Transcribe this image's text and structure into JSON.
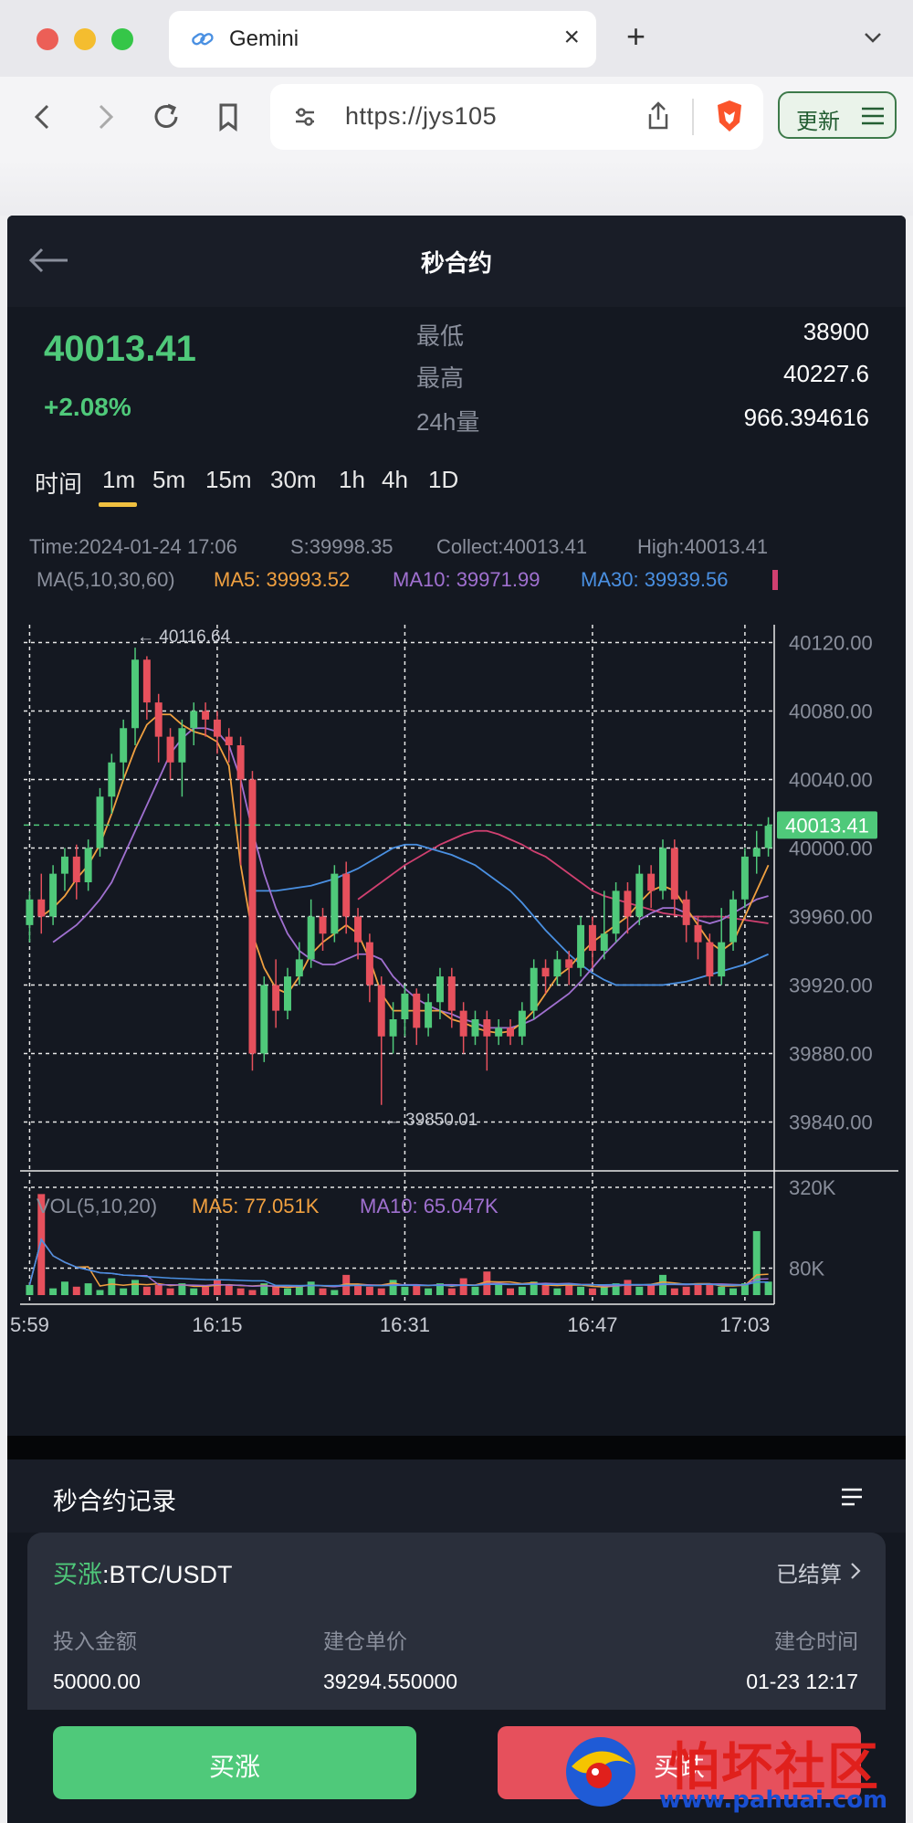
{
  "browser": {
    "tab_title": "Gemini",
    "url": "https://jys105",
    "update_label": "更新"
  },
  "app": {
    "title": "秒合约",
    "price": "40013.41",
    "change": "+2.08%",
    "stats": [
      {
        "label": "最低",
        "value": "38900"
      },
      {
        "label": "最高",
        "value": "40227.6"
      },
      {
        "label": "24h量",
        "value": "966.394616"
      }
    ],
    "timeframes": [
      "时间",
      "1m",
      "5m",
      "15m",
      "30m",
      "1h",
      "4h",
      "1D"
    ],
    "active_timeframe": "1m"
  },
  "chart_data": {
    "type": "candlestick",
    "info": {
      "time": "Time:2024-01-24 17:06",
      "s": "S:39998.35",
      "collect": "Collect:40013.41",
      "high": "High:40013.41"
    },
    "ma_legend": {
      "label": "MA(5,10,30,60)",
      "ma5": "MA5: 39993.52",
      "ma10": "MA10: 39971.99",
      "ma30": "MA30: 39939.56"
    },
    "vol_legend": {
      "label": "VOL(5,10,20)",
      "ma5": "MA5: 77.051K",
      "ma10": "MA10: 65.047K"
    },
    "y_ticks": [
      "40120.00",
      "40080.00",
      "40040.00",
      "40000.00",
      "39960.00",
      "39920.00",
      "39880.00",
      "39840.00"
    ],
    "y_tick_values": [
      40120,
      40080,
      40040,
      40000,
      39960,
      39920,
      39880,
      39840
    ],
    "ylim": [
      39820,
      40140
    ],
    "vol_ticks": [
      "320K",
      "80K"
    ],
    "x_ticks": [
      "5:59",
      "16:15",
      "16:31",
      "16:47",
      "17:03"
    ],
    "last_price_label": "40013.41",
    "max_label": "40116.64",
    "min_label": "39850.01",
    "candles": [
      [
        39955,
        39970,
        39945,
        39975
      ],
      [
        39970,
        39960,
        39950,
        39985
      ],
      [
        39960,
        39985,
        39955,
        39990
      ],
      [
        39985,
        39995,
        39975,
        40000
      ],
      [
        39995,
        39980,
        39970,
        40002
      ],
      [
        39980,
        40000,
        39975,
        40005
      ],
      [
        40000,
        40030,
        39995,
        40035
      ],
      [
        40030,
        40050,
        40020,
        40055
      ],
      [
        40050,
        40070,
        40040,
        40075
      ],
      [
        40070,
        40110,
        40060,
        40117
      ],
      [
        40110,
        40085,
        40075,
        40112
      ],
      [
        40085,
        40065,
        40050,
        40090
      ],
      [
        40065,
        40050,
        40040,
        40070
      ],
      [
        40050,
        40070,
        40030,
        40075
      ],
      [
        40070,
        40080,
        40060,
        40085
      ],
      [
        40080,
        40075,
        40065,
        40085
      ],
      [
        40075,
        40065,
        40055,
        40080
      ],
      [
        40065,
        40060,
        40050,
        40070
      ],
      [
        40060,
        40040,
        39990,
        40065
      ],
      [
        40040,
        39880,
        39870,
        40045
      ],
      [
        39880,
        39920,
        39875,
        39925
      ],
      [
        39920,
        39905,
        39895,
        39935
      ],
      [
        39905,
        39925,
        39900,
        39930
      ],
      [
        39925,
        39935,
        39920,
        39945
      ],
      [
        39935,
        39960,
        39930,
        39970
      ],
      [
        39960,
        39950,
        39940,
        39965
      ],
      [
        39950,
        39985,
        39945,
        39990
      ],
      [
        39985,
        39960,
        39950,
        39992
      ],
      [
        39960,
        39945,
        39935,
        39965
      ],
      [
        39945,
        39920,
        39910,
        39950
      ],
      [
        39920,
        39890,
        39850,
        39925
      ],
      [
        39890,
        39900,
        39880,
        39910
      ],
      [
        39900,
        39915,
        39890,
        39920
      ],
      [
        39915,
        39895,
        39885,
        39918
      ],
      [
        39895,
        39910,
        39890,
        39915
      ],
      [
        39910,
        39925,
        39900,
        39930
      ],
      [
        39925,
        39905,
        39895,
        39930
      ],
      [
        39905,
        39890,
        39880,
        39910
      ],
      [
        39890,
        39900,
        39885,
        39905
      ],
      [
        39900,
        39890,
        39870,
        39905
      ],
      [
        39890,
        39895,
        39885,
        39900
      ],
      [
        39895,
        39890,
        39885,
        39900
      ],
      [
        39890,
        39905,
        39885,
        39910
      ],
      [
        39905,
        39930,
        39900,
        39935
      ],
      [
        39930,
        39925,
        39915,
        39935
      ],
      [
        39925,
        39935,
        39920,
        39940
      ],
      [
        39935,
        39930,
        39920,
        39940
      ],
      [
        39930,
        39955,
        39925,
        39960
      ],
      [
        39955,
        39940,
        39930,
        39960
      ],
      [
        39940,
        39950,
        39935,
        39975
      ],
      [
        39950,
        39975,
        39945,
        39980
      ],
      [
        39975,
        39960,
        39950,
        39980
      ],
      [
        39960,
        39985,
        39955,
        39990
      ],
      [
        39985,
        39975,
        39965,
        39990
      ],
      [
        39975,
        40000,
        39970,
        40005
      ],
      [
        40000,
        39970,
        39960,
        40005
      ],
      [
        39970,
        39955,
        39945,
        39975
      ],
      [
        39955,
        39945,
        39935,
        39960
      ],
      [
        39945,
        39925,
        39920,
        39950
      ],
      [
        39925,
        39945,
        39920,
        39965
      ],
      [
        39945,
        39970,
        39940,
        39975
      ],
      [
        39970,
        39995,
        39965,
        40000
      ],
      [
        39995,
        40000,
        39985,
        40010
      ],
      [
        40000,
        40013,
        39995,
        40018
      ]
    ],
    "volumes": [
      30,
      300,
      20,
      40,
      25,
      35,
      15,
      50,
      20,
      45,
      25,
      30,
      20,
      35,
      20,
      25,
      45,
      30,
      20,
      15,
      35,
      25,
      20,
      30,
      40,
      20,
      15,
      60,
      30,
      25,
      20,
      45,
      25,
      30,
      20,
      35,
      20,
      50,
      25,
      70,
      30,
      20,
      25,
      40,
      35,
      20,
      30,
      25,
      20,
      25,
      35,
      45,
      25,
      30,
      60,
      20,
      25,
      35,
      30,
      25,
      20,
      35,
      190,
      40
    ],
    "ma5": [
      39960,
      39965,
      39972,
      39982,
      39990,
      40002,
      40020,
      40040,
      40058,
      40072,
      40078,
      40078,
      40072,
      40068,
      40066,
      40062,
      40048,
      39990,
      39950,
      39930,
      39918,
      39915,
      39925,
      39938,
      39945,
      39950,
      39955,
      39950,
      39935,
      39915,
      39905,
      39905,
      39905,
      39905,
      39905,
      39900,
      39898,
      39895,
      39893,
      39892,
      39893,
      39898,
      39905,
      39915,
      39925,
      39930,
      39938,
      39945,
      39950,
      39955,
      39960,
      39968,
      39975,
      39978,
      39975,
      39965,
      39955,
      39945,
      39940,
      39945,
      39960,
      39975,
      39990
    ],
    "ma10": [
      39945,
      39950,
      39955,
      39962,
      39970,
      39980,
      39995,
      40010,
      40025,
      40040,
      40055,
      40064,
      40070,
      40070,
      40068,
      40060,
      40040,
      40010,
      39985,
      39965,
      39950,
      39940,
      39935,
      39932,
      39932,
      39935,
      39938,
      39938,
      39935,
      39925,
      39918,
      39912,
      39908,
      39905,
      39903,
      39900,
      39898,
      39895,
      39895,
      39895,
      39897,
      39900,
      39905,
      39910,
      39915,
      39922,
      39930,
      39938,
      39945,
      39952,
      39958,
      39962,
      39965,
      39965,
      39962,
      39958,
      39956,
      39958,
      39962,
      39966,
      39970,
      39972
    ],
    "ma30": [
      39975,
      39975,
      39975,
      39976,
      39977,
      39978,
      39980,
      39982,
      39985,
      39988,
      39992,
      39996,
      40000,
      40002,
      40002,
      40000,
      39998,
      39996,
      39993,
      39990,
      39985,
      39980,
      39975,
      39968,
      39960,
      39952,
      39945,
      39938,
      39932,
      39927,
      39923,
      39920,
      39920,
      39920,
      39920,
      39920,
      39921,
      39922,
      39924,
      39926,
      39928,
      39930,
      39932,
      39935,
      39938
    ],
    "ma60": [
      39970,
      39975,
      39980,
      39985,
      39990,
      39994,
      39998,
      40002,
      40005,
      40008,
      40010,
      40010,
      40008,
      40005,
      40002,
      39998,
      39995,
      39990,
      39985,
      39980,
      39975,
      39972,
      39970,
      39968,
      39966,
      39964,
      39962,
      39961,
      39960,
      39960,
      39960,
      39960,
      39959,
      39958,
      39957,
      39956
    ]
  },
  "records": {
    "title": "秒合约记录",
    "card": {
      "side": "买涨",
      "pair": ":BTC/USDT",
      "status": "已结算",
      "labels": [
        "投入金额",
        "建仓单价",
        "建仓时间"
      ],
      "values": [
        "50000.00",
        "39294.550000",
        "01-23 12:17"
      ]
    }
  },
  "actions": {
    "buy": "买涨",
    "sell": "买跌"
  },
  "watermark": {
    "text": "怕坏社区",
    "url": "www.pahuai.com"
  },
  "colors": {
    "up": "#4fc97a",
    "down": "#e6505c",
    "ma5": "#f0a040",
    "ma10": "#a070d0",
    "ma30": "#4a90e2",
    "ma60": "#d04070"
  }
}
